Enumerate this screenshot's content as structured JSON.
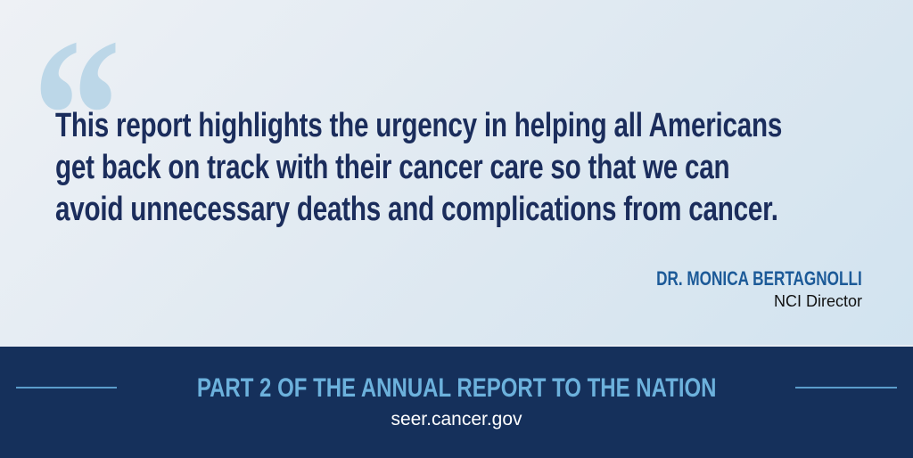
{
  "quote": {
    "mark": "“",
    "lines": [
      "This report highlights the urgency in helping all Americans",
      "get back on track with their cancer care so that we can",
      "avoid unnecessary deaths and complications from cancer."
    ]
  },
  "author": {
    "name": "DR. MONICA BERTAGNOLLI",
    "title": "NCI Director"
  },
  "banner": {
    "title": "PART 2 OF THE ANNUAL REPORT TO THE NATION",
    "url": "seer.cancer.gov"
  },
  "colors": {
    "banner": "#15305b",
    "quote_text": "#1b2d5c",
    "accent": "#6cb1dc",
    "author": "#1c5a98"
  }
}
